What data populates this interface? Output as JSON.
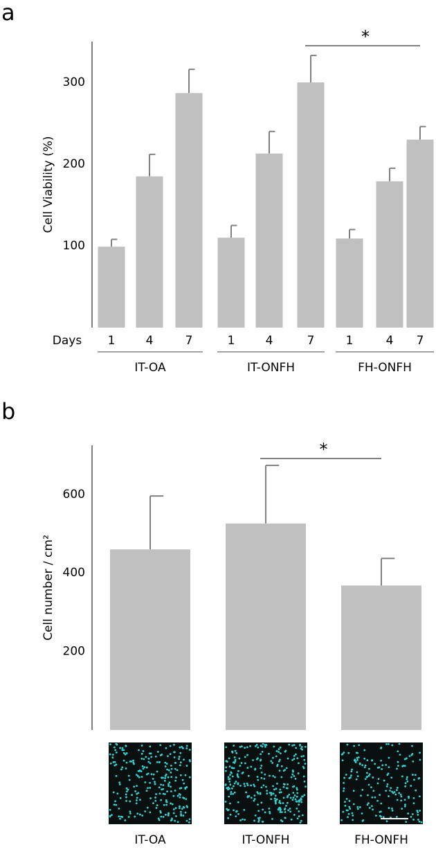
{
  "chart_data": [
    {
      "type": "bar",
      "panel": "a",
      "y_label": "Cell Viability (%)",
      "x_label": "Days",
      "categories": [
        "1",
        "4",
        "7",
        "1",
        "4",
        "7",
        "1",
        "4",
        "7"
      ],
      "groups": [
        "IT-OA",
        "IT-ONFH",
        "FH-ONFH"
      ],
      "values": [
        99,
        185,
        287,
        110,
        213,
        300,
        109,
        179,
        230
      ],
      "errors": [
        9,
        27,
        29,
        15,
        27,
        33,
        11,
        16,
        16
      ],
      "color": "#c0c0c0",
      "error_color": "#808080",
      "ylim": [
        0,
        350
      ],
      "yticks": [
        100,
        200,
        300
      ],
      "annotation": "*"
    },
    {
      "type": "bar",
      "panel": "b",
      "y_label": "Cell number / cm²",
      "categories": [
        "IT-OA",
        "IT-ONFH",
        "FH-ONFH"
      ],
      "values": [
        460,
        526,
        368
      ],
      "errors": [
        136,
        148,
        69
      ],
      "color": "#c0c0c0",
      "error_color": "#808080",
      "ylim": [
        0,
        725
      ],
      "yticks": [
        200,
        400,
        600
      ],
      "annotation": "*"
    }
  ]
}
